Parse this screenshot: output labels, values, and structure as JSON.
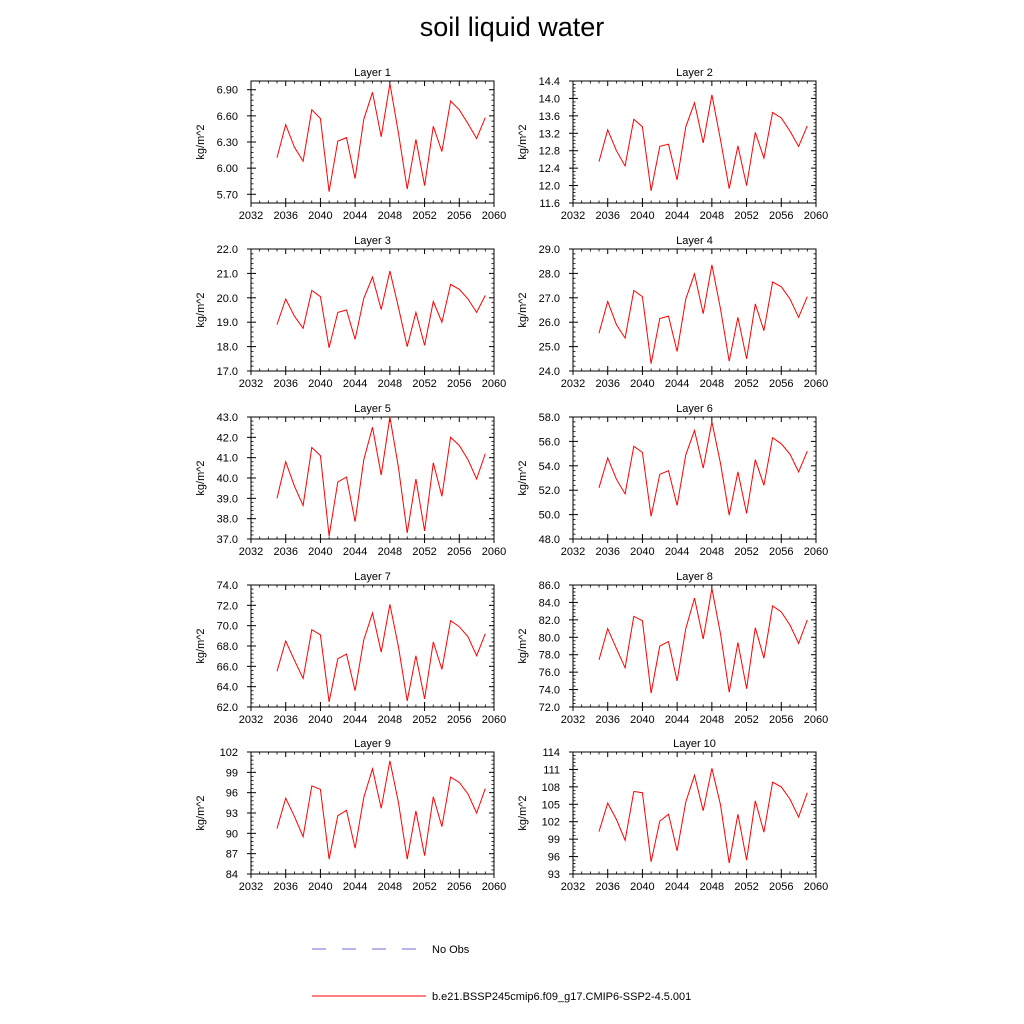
{
  "figure": {
    "title": "soil liquid water"
  },
  "legend": {
    "obs_label": "No Obs",
    "model_label": "b.e21.BSSP245cmip6.f09_g17.CMIP6-SSP2-4.5.001",
    "obs_color": "#6b6bd9",
    "model_color": "#ff0000"
  },
  "chart_data": [
    {
      "type": "line",
      "title": "Layer 1",
      "ylabel": "kg/m^2",
      "xlabel": "",
      "xlim": [
        2032,
        2060
      ],
      "xticks": [
        2032,
        2036,
        2040,
        2044,
        2048,
        2052,
        2056,
        2060
      ],
      "ylim": [
        5.6,
        7.0
      ],
      "yticks": [
        5.7,
        6.0,
        6.3,
        6.6,
        6.9
      ],
      "ytick_labels": [
        "5.70",
        "6.00",
        "6.30",
        "6.60",
        "6.90"
      ],
      "series": [
        {
          "color": "#ff0000",
          "x": [
            2035,
            2036,
            2037,
            2038,
            2039,
            2040,
            2041,
            2042,
            2043,
            2044,
            2045,
            2046,
            2047,
            2048,
            2049,
            2050,
            2051,
            2052,
            2053,
            2054,
            2055,
            2056,
            2057,
            2058,
            2059
          ],
          "values": [
            6.12,
            6.5,
            6.24,
            6.08,
            6.67,
            6.57,
            5.73,
            6.31,
            6.35,
            5.88,
            6.56,
            6.87,
            6.36,
            6.97,
            6.4,
            5.76,
            6.33,
            5.8,
            6.48,
            6.19,
            6.77,
            6.67,
            6.51,
            6.34,
            6.58
          ]
        }
      ]
    },
    {
      "type": "line",
      "title": "Layer 2",
      "ylabel": "kg/m^2",
      "xlabel": "",
      "xlim": [
        2032,
        2060
      ],
      "xticks": [
        2032,
        2036,
        2040,
        2044,
        2048,
        2052,
        2056,
        2060
      ],
      "ylim": [
        11.6,
        14.4
      ],
      "yticks": [
        11.6,
        12.0,
        12.4,
        12.8,
        13.2,
        13.6,
        14.0,
        14.4
      ],
      "ytick_labels": [
        "11.6",
        "12.0",
        "12.4",
        "12.8",
        "13.2",
        "13.6",
        "14.0",
        "14.4"
      ],
      "series": [
        {
          "color": "#ff0000",
          "x": [
            2035,
            2036,
            2037,
            2038,
            2039,
            2040,
            2041,
            2042,
            2043,
            2044,
            2045,
            2046,
            2047,
            2048,
            2049,
            2050,
            2051,
            2052,
            2053,
            2054,
            2055,
            2056,
            2057,
            2058,
            2059
          ],
          "values": [
            12.55,
            13.28,
            12.8,
            12.45,
            13.52,
            13.35,
            11.88,
            12.9,
            12.95,
            12.13,
            13.35,
            13.9,
            12.98,
            14.08,
            13.05,
            11.93,
            12.91,
            12.0,
            13.22,
            12.63,
            13.68,
            13.55,
            13.25,
            12.9,
            13.37
          ]
        }
      ]
    },
    {
      "type": "line",
      "title": "Layer 3",
      "ylabel": "kg/m^2",
      "xlabel": "",
      "xlim": [
        2032,
        2060
      ],
      "xticks": [
        2032,
        2036,
        2040,
        2044,
        2048,
        2052,
        2056,
        2060
      ],
      "ylim": [
        17.0,
        22.0
      ],
      "yticks": [
        17.0,
        18.0,
        19.0,
        20.0,
        21.0,
        22.0
      ],
      "ytick_labels": [
        "17.0",
        "18.0",
        "19.0",
        "20.0",
        "21.0",
        "22.0"
      ],
      "series": [
        {
          "color": "#ff0000",
          "x": [
            2035,
            2036,
            2037,
            2038,
            2039,
            2040,
            2041,
            2042,
            2043,
            2044,
            2045,
            2046,
            2047,
            2048,
            2049,
            2050,
            2051,
            2052,
            2053,
            2054,
            2055,
            2056,
            2057,
            2058,
            2059
          ],
          "values": [
            18.9,
            19.95,
            19.25,
            18.75,
            20.3,
            20.05,
            17.95,
            19.4,
            19.5,
            18.3,
            19.98,
            20.85,
            19.52,
            21.1,
            19.6,
            18.0,
            19.4,
            18.05,
            19.85,
            19.0,
            20.55,
            20.35,
            19.95,
            19.4,
            20.1
          ]
        }
      ]
    },
    {
      "type": "line",
      "title": "Layer 4",
      "ylabel": "kg/m^2",
      "xlabel": "",
      "xlim": [
        2032,
        2060
      ],
      "xticks": [
        2032,
        2036,
        2040,
        2044,
        2048,
        2052,
        2056,
        2060
      ],
      "ylim": [
        24.0,
        29.0
      ],
      "yticks": [
        24.0,
        25.0,
        26.0,
        27.0,
        28.0,
        29.0
      ],
      "ytick_labels": [
        "24.0",
        "25.0",
        "26.0",
        "27.0",
        "28.0",
        "29.0"
      ],
      "series": [
        {
          "color": "#ff0000",
          "x": [
            2035,
            2036,
            2037,
            2038,
            2039,
            2040,
            2041,
            2042,
            2043,
            2044,
            2045,
            2046,
            2047,
            2048,
            2049,
            2050,
            2051,
            2052,
            2053,
            2054,
            2055,
            2056,
            2057,
            2058,
            2059
          ],
          "values": [
            25.55,
            26.85,
            25.9,
            25.35,
            27.3,
            27.05,
            24.3,
            26.15,
            26.25,
            24.8,
            26.95,
            27.98,
            26.35,
            28.35,
            26.55,
            24.4,
            26.2,
            24.5,
            26.75,
            25.65,
            27.65,
            27.45,
            26.95,
            26.2,
            27.05
          ]
        }
      ]
    },
    {
      "type": "line",
      "title": "Layer 5",
      "ylabel": "kg/m^2",
      "xlabel": "",
      "xlim": [
        2032,
        2060
      ],
      "xticks": [
        2032,
        2036,
        2040,
        2044,
        2048,
        2052,
        2056,
        2060
      ],
      "ylim": [
        37.0,
        43.0
      ],
      "yticks": [
        37.0,
        38.0,
        39.0,
        40.0,
        41.0,
        42.0,
        43.0
      ],
      "ytick_labels": [
        "37.0",
        "38.0",
        "39.0",
        "40.0",
        "41.0",
        "42.0",
        "43.0"
      ],
      "series": [
        {
          "color": "#ff0000",
          "x": [
            2035,
            2036,
            2037,
            2038,
            2039,
            2040,
            2041,
            2042,
            2043,
            2044,
            2045,
            2046,
            2047,
            2048,
            2049,
            2050,
            2051,
            2052,
            2053,
            2054,
            2055,
            2056,
            2057,
            2058,
            2059
          ],
          "values": [
            39.0,
            40.8,
            39.6,
            38.65,
            41.5,
            41.1,
            37.15,
            39.8,
            40.05,
            37.85,
            40.9,
            42.5,
            40.15,
            43.0,
            40.5,
            37.3,
            39.95,
            37.4,
            40.75,
            39.1,
            42.0,
            41.6,
            40.9,
            39.95,
            41.2
          ]
        }
      ]
    },
    {
      "type": "line",
      "title": "Layer 6",
      "ylabel": "kg/m^2",
      "xlabel": "",
      "xlim": [
        2032,
        2060
      ],
      "xticks": [
        2032,
        2036,
        2040,
        2044,
        2048,
        2052,
        2056,
        2060
      ],
      "ylim": [
        48.0,
        58.0
      ],
      "yticks": [
        48.0,
        50.0,
        52.0,
        54.0,
        56.0,
        58.0
      ],
      "ytick_labels": [
        "48.0",
        "50.0",
        "52.0",
        "54.0",
        "56.0",
        "58.0"
      ],
      "series": [
        {
          "color": "#ff0000",
          "x": [
            2035,
            2036,
            2037,
            2038,
            2039,
            2040,
            2041,
            2042,
            2043,
            2044,
            2045,
            2046,
            2047,
            2048,
            2049,
            2050,
            2051,
            2052,
            2053,
            2054,
            2055,
            2056,
            2057,
            2058,
            2059
          ],
          "values": [
            52.2,
            54.65,
            52.9,
            51.7,
            55.6,
            55.1,
            49.85,
            53.3,
            53.6,
            50.75,
            54.9,
            56.9,
            53.8,
            57.6,
            54.2,
            49.95,
            53.5,
            50.1,
            54.5,
            52.4,
            56.3,
            55.8,
            54.95,
            53.5,
            55.2
          ]
        }
      ]
    },
    {
      "type": "line",
      "title": "Layer 7",
      "ylabel": "kg/m^2",
      "xlabel": "",
      "xlim": [
        2032,
        2060
      ],
      "xticks": [
        2032,
        2036,
        2040,
        2044,
        2048,
        2052,
        2056,
        2060
      ],
      "ylim": [
        62.0,
        74.0
      ],
      "yticks": [
        62.0,
        64.0,
        66.0,
        68.0,
        70.0,
        72.0,
        74.0
      ],
      "ytick_labels": [
        "62.0",
        "64.0",
        "66.0",
        "68.0",
        "70.0",
        "72.0",
        "74.0"
      ],
      "series": [
        {
          "color": "#ff0000",
          "x": [
            2035,
            2036,
            2037,
            2038,
            2039,
            2040,
            2041,
            2042,
            2043,
            2044,
            2045,
            2046,
            2047,
            2048,
            2049,
            2050,
            2051,
            2052,
            2053,
            2054,
            2055,
            2056,
            2057,
            2058,
            2059
          ],
          "values": [
            65.5,
            68.5,
            66.6,
            64.8,
            69.6,
            69.1,
            62.5,
            66.75,
            67.2,
            63.6,
            68.6,
            71.25,
            67.4,
            72.1,
            67.9,
            62.6,
            67.05,
            62.8,
            68.4,
            65.7,
            70.5,
            69.9,
            68.9,
            67.05,
            69.2
          ]
        }
      ]
    },
    {
      "type": "line",
      "title": "Layer 8",
      "ylabel": "kg/m^2",
      "xlabel": "",
      "xlim": [
        2032,
        2060
      ],
      "xticks": [
        2032,
        2036,
        2040,
        2044,
        2048,
        2052,
        2056,
        2060
      ],
      "ylim": [
        72.0,
        86.0
      ],
      "yticks": [
        72.0,
        74.0,
        76.0,
        78.0,
        80.0,
        82.0,
        84.0,
        86.0
      ],
      "ytick_labels": [
        "72.0",
        "74.0",
        "76.0",
        "78.0",
        "80.0",
        "82.0",
        "84.0",
        "86.0"
      ],
      "series": [
        {
          "color": "#ff0000",
          "x": [
            2035,
            2036,
            2037,
            2038,
            2039,
            2040,
            2041,
            2042,
            2043,
            2044,
            2045,
            2046,
            2047,
            2048,
            2049,
            2050,
            2051,
            2052,
            2053,
            2054,
            2055,
            2056,
            2057,
            2058,
            2059
          ],
          "values": [
            77.4,
            81.0,
            78.7,
            76.5,
            82.4,
            81.9,
            73.6,
            79.0,
            79.5,
            75.0,
            81.0,
            84.5,
            79.8,
            85.6,
            80.4,
            73.7,
            79.4,
            74.1,
            81.1,
            77.6,
            83.6,
            82.9,
            81.4,
            79.3,
            82.0
          ]
        }
      ]
    },
    {
      "type": "line",
      "title": "Layer 9",
      "ylabel": "kg/m^2",
      "xlabel": "",
      "xlim": [
        2032,
        2060
      ],
      "xticks": [
        2032,
        2036,
        2040,
        2044,
        2048,
        2052,
        2056,
        2060
      ],
      "ylim": [
        84,
        102
      ],
      "yticks": [
        84,
        87,
        90,
        93,
        96,
        99,
        102
      ],
      "ytick_labels": [
        "84",
        "87",
        "90",
        "93",
        "96",
        "99",
        "102"
      ],
      "series": [
        {
          "color": "#ff0000",
          "x": [
            2035,
            2036,
            2037,
            2038,
            2039,
            2040,
            2041,
            2042,
            2043,
            2044,
            2045,
            2046,
            2047,
            2048,
            2049,
            2050,
            2051,
            2052,
            2053,
            2054,
            2055,
            2056,
            2057,
            2058,
            2059
          ],
          "values": [
            90.7,
            95.2,
            92.5,
            89.5,
            97.0,
            96.5,
            86.2,
            92.6,
            93.4,
            87.8,
            95.3,
            99.5,
            93.7,
            100.7,
            94.5,
            86.2,
            93.3,
            86.7,
            95.4,
            91.0,
            98.3,
            97.5,
            95.8,
            93.0,
            96.6
          ]
        }
      ]
    },
    {
      "type": "line",
      "title": "Layer 10",
      "ylabel": "kg/m^2",
      "xlabel": "",
      "xlim": [
        2032,
        2060
      ],
      "xticks": [
        2032,
        2036,
        2040,
        2044,
        2048,
        2052,
        2056,
        2060
      ],
      "ylim": [
        93,
        114
      ],
      "yticks": [
        93,
        96,
        99,
        102,
        105,
        108,
        111,
        114
      ],
      "ytick_labels": [
        "93",
        "96",
        "99",
        "102",
        "105",
        "108",
        "111",
        "114"
      ],
      "series": [
        {
          "color": "#ff0000",
          "x": [
            2035,
            2036,
            2037,
            2038,
            2039,
            2040,
            2041,
            2042,
            2043,
            2044,
            2045,
            2046,
            2047,
            2048,
            2049,
            2050,
            2051,
            2052,
            2053,
            2054,
            2055,
            2056,
            2057,
            2058,
            2059
          ],
          "values": [
            100.3,
            105.2,
            102.4,
            98.8,
            107.2,
            107.0,
            95.1,
            102.1,
            103.3,
            97.0,
            105.4,
            110.0,
            103.9,
            111.2,
            104.9,
            94.9,
            103.3,
            95.4,
            105.6,
            100.2,
            108.8,
            108.0,
            105.9,
            102.8,
            107.0
          ]
        }
      ]
    }
  ]
}
